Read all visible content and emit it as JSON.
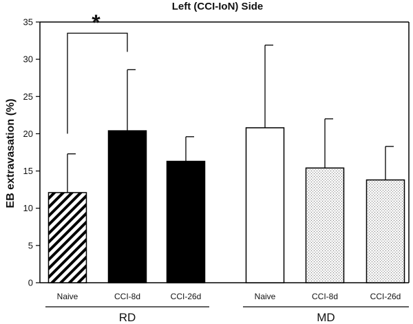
{
  "chart_data": {
    "type": "bar",
    "title": "Left (CCI-IoN) Side",
    "ylabel": "EB extravasation (%)",
    "xlabel": "",
    "ylim": [
      0,
      35
    ],
    "yticks": [
      0,
      5,
      10,
      15,
      20,
      25,
      30,
      35
    ],
    "grid": false,
    "legend": "none",
    "categories": [
      "Naive",
      "CCI-8d",
      "CCI-26d",
      "Naive",
      "CCI-8d",
      "CCI-26d"
    ],
    "groups": [
      {
        "label": "RD",
        "members": [
          0,
          1,
          2
        ]
      },
      {
        "label": "MD",
        "members": [
          3,
          4,
          5
        ]
      }
    ],
    "values": [
      12.1,
      20.4,
      16.3,
      20.8,
      15.4,
      13.8
    ],
    "error_upper": [
      17.3,
      28.6,
      19.6,
      31.9,
      22.0,
      18.3
    ],
    "bar_fills": [
      "diagonal-hatch",
      "solid-black",
      "solid-black",
      "white",
      "light-dots",
      "light-dots"
    ],
    "annotations": [
      {
        "text": "*",
        "from": 0,
        "to": 1,
        "bracket_y": 33.5
      }
    ],
    "colors": {
      "axis": "#000000",
      "solid": "#000000",
      "white": "#ffffff",
      "dots_bg": "#f3f3f3",
      "dots_fg": "#7a7a7a"
    }
  }
}
